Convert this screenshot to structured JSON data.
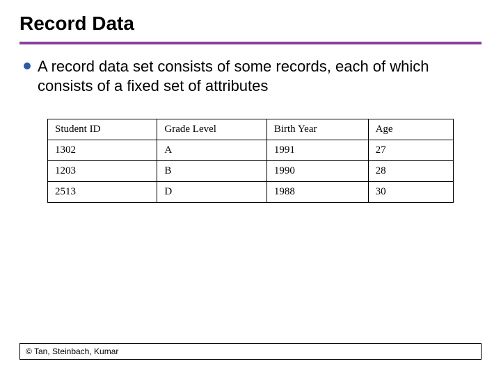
{
  "title": "Record Data",
  "divider_color": "#8a3fa0",
  "bullet_color": "#2a5aa8",
  "body_text": "A record data set consists of some records, each of which consists of a fixed set of attributes",
  "table": {
    "columns": [
      "Student ID",
      "Grade Level",
      "Birth Year",
      "Age"
    ],
    "rows": [
      [
        "1302",
        "A",
        "1991",
        "27"
      ],
      [
        "1203",
        "B",
        "1990",
        "28"
      ],
      [
        "2513",
        "D",
        "1988",
        "30"
      ]
    ],
    "border_color": "#000000",
    "font_family": "Times New Roman",
    "header_fontsize": 15,
    "cell_fontsize": 15
  },
  "footer": "© Tan, Steinbach, Kumar",
  "background_color": "#ffffff",
  "title_fontsize": 28,
  "body_fontsize": 22
}
